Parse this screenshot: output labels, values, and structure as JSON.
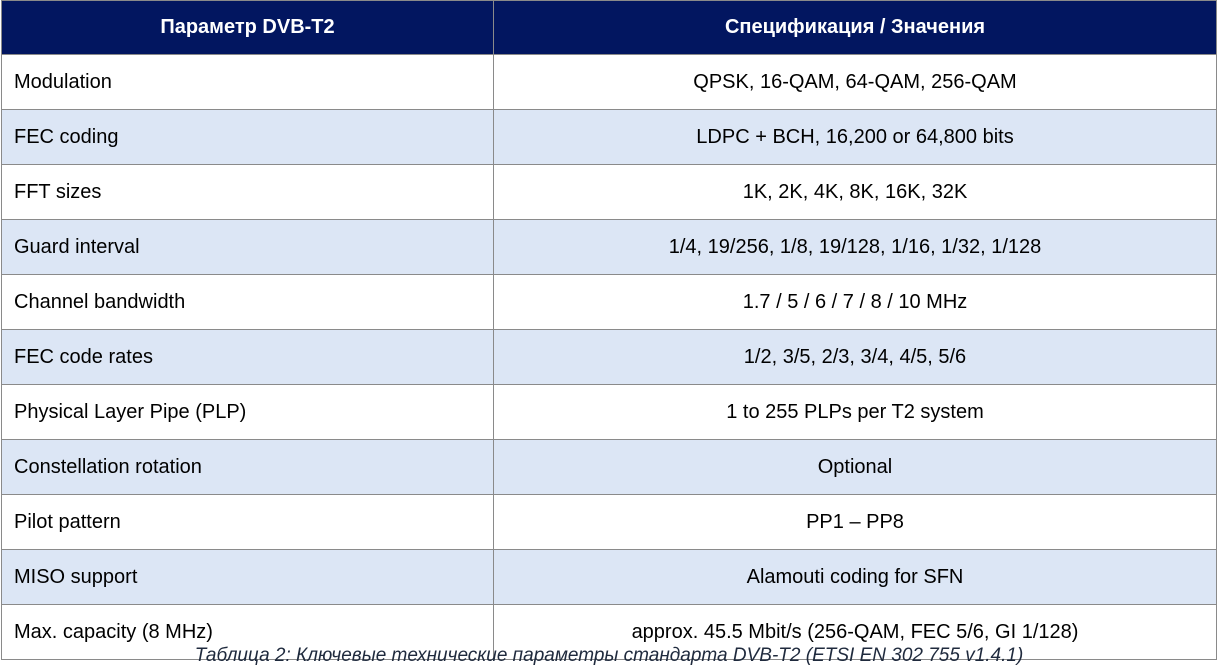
{
  "table": {
    "headers": [
      "Параметр DVB-T2",
      "Спецификация / Значения"
    ],
    "rows": [
      {
        "param": "Modulation",
        "value": "QPSK, 16-QAM, 64-QAM, 256-QAM"
      },
      {
        "param": "FEC coding",
        "value": "LDPC + BCH, 16,200 or 64,800 bits"
      },
      {
        "param": "FFT sizes",
        "value": "1K, 2K, 4K, 8K, 16K, 32K"
      },
      {
        "param": "Guard interval",
        "value": "1/4, 19/256, 1/8, 19/128, 1/16, 1/32, 1/128"
      },
      {
        "param": "Channel bandwidth",
        "value": "1.7 / 5 / 6 / 7 / 8 / 10 MHz"
      },
      {
        "param": "FEC code rates",
        "value": "1/2, 3/5, 2/3, 3/4, 4/5, 5/6"
      },
      {
        "param": "Physical Layer Pipe (PLP)",
        "value": "1 to 255 PLPs per T2 system"
      },
      {
        "param": "Constellation rotation",
        "value": "Optional"
      },
      {
        "param": "Pilot pattern",
        "value": "PP1 – PP8"
      },
      {
        "param": "MISO support",
        "value": "Alamouti coding for SFN"
      },
      {
        "param": "Max. capacity (8 MHz)",
        "value": "approx. 45.5 Mbit/s (256-QAM, FEC 5/6, GI 1/128)"
      }
    ]
  },
  "caption": "Таблица 2: Ключевые технические параметры стандарта DVB-T2 (ETSI EN 302 755 v1.4.1)",
  "colors": {
    "header_bg": "#021660",
    "stripe": "#dce6f5"
  }
}
